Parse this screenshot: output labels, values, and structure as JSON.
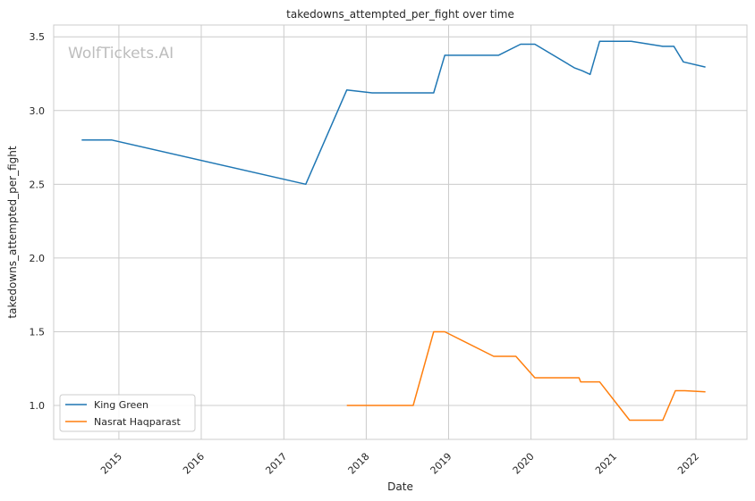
{
  "chart_data": {
    "type": "line",
    "title": "takedowns_attempted_per_fight over time",
    "xlabel": "Date",
    "ylabel": "takedowns_attempted_per_fight",
    "watermark": "WolfTickets.AI",
    "x_ticks": [
      "2015",
      "2016",
      "2017",
      "2018",
      "2019",
      "2020",
      "2021",
      "2022"
    ],
    "y_ticks": [
      "1.0",
      "1.5",
      "2.0",
      "2.5",
      "3.0",
      "3.5"
    ],
    "xlim": [
      "2014-03-18",
      "2022-08-15"
    ],
    "ylim": [
      0.77,
      3.58
    ],
    "grid": true,
    "legend_position": "lower-left",
    "series": [
      {
        "name": "King Green",
        "color": "#1f77b4",
        "points": [
          [
            "2014-07-20",
            2.8
          ],
          [
            "2014-12-01",
            2.8
          ],
          [
            "2017-04-08",
            2.5
          ],
          [
            "2017-10-07",
            3.14
          ],
          [
            "2018-01-27",
            3.12
          ],
          [
            "2018-10-27",
            3.12
          ],
          [
            "2018-12-15",
            3.375
          ],
          [
            "2019-08-10",
            3.375
          ],
          [
            "2019-11-16",
            3.45
          ],
          [
            "2020-01-18",
            3.45
          ],
          [
            "2020-07-11",
            3.29
          ],
          [
            "2020-08-15",
            3.27
          ],
          [
            "2020-09-19",
            3.245
          ],
          [
            "2020-10-31",
            3.47
          ],
          [
            "2021-03-20",
            3.47
          ],
          [
            "2021-08-07",
            3.435
          ],
          [
            "2021-09-25",
            3.435
          ],
          [
            "2021-11-06",
            3.33
          ],
          [
            "2022-02-12",
            3.295
          ]
        ]
      },
      {
        "name": "Nasrat Haqparast",
        "color": "#ff7f0e",
        "points": [
          [
            "2017-10-07",
            1.0
          ],
          [
            "2018-07-28",
            1.0
          ],
          [
            "2018-10-27",
            1.5
          ],
          [
            "2018-12-15",
            1.5
          ],
          [
            "2019-07-20",
            1.333
          ],
          [
            "2019-10-26",
            1.333
          ],
          [
            "2020-01-18",
            1.188
          ],
          [
            "2020-08-01",
            1.188
          ],
          [
            "2020-08-08",
            1.16
          ],
          [
            "2020-10-31",
            1.16
          ],
          [
            "2021-03-13",
            0.9
          ],
          [
            "2021-08-07",
            0.9
          ],
          [
            "2021-10-02",
            1.1
          ],
          [
            "2021-11-13",
            1.1
          ],
          [
            "2022-02-12",
            1.093
          ]
        ]
      }
    ]
  }
}
